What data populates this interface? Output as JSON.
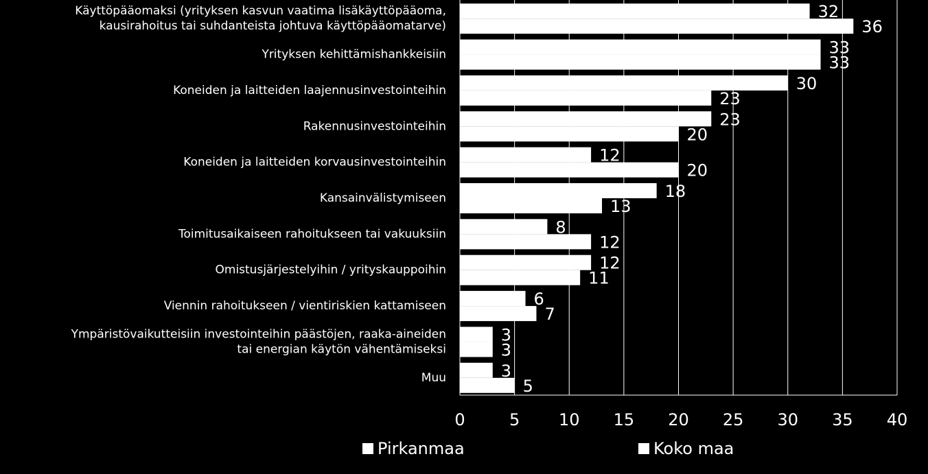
{
  "chart_data": {
    "type": "bar",
    "orientation": "horizontal",
    "categories": [
      [
        "Käyttöpääomaksi (yrityksen kasvun vaatima lisäkäyttöpääoma,",
        "kausirahoitus tai suhdanteista johtuva käyttöpääomatarve)"
      ],
      [
        "Yrityksen kehittämishankkeisiin"
      ],
      [
        "Koneiden ja laitteiden laajennusinvestointeihin"
      ],
      [
        "Rakennusinvestointeihin"
      ],
      [
        "Koneiden ja laitteiden korvausinvestointeihin"
      ],
      [
        "Kansainvälistymiseen"
      ],
      [
        "Toimitusaikaiseen rahoitukseen tai vakuuksiin"
      ],
      [
        "Omistusjärjestelyihin / yrityskauppoihin"
      ],
      [
        "Viennin rahoitukseen / vientiriskien kattamiseen"
      ],
      [
        "Ympäristövaikutteisiin investointeihin päästöjen, raaka-aineiden",
        "tai energian käytön vähentämiseksi"
      ],
      [
        "Muu"
      ]
    ],
    "series": [
      {
        "name": "Pirkanmaa",
        "values": [
          32,
          33,
          30,
          23,
          12,
          18,
          8,
          12,
          6,
          3,
          3
        ],
        "color": "#ffffff"
      },
      {
        "name": "Koko maa",
        "values": [
          36,
          33,
          23,
          20,
          20,
          13,
          12,
          11,
          7,
          3,
          5
        ],
        "color": "#ffffff"
      }
    ],
    "xlim": [
      0,
      40
    ],
    "xticks": [
      "0",
      "5",
      "10",
      "15",
      "20",
      "25",
      "30",
      "35",
      "40"
    ],
    "grid": "vertical",
    "legend_position": "bottom"
  }
}
